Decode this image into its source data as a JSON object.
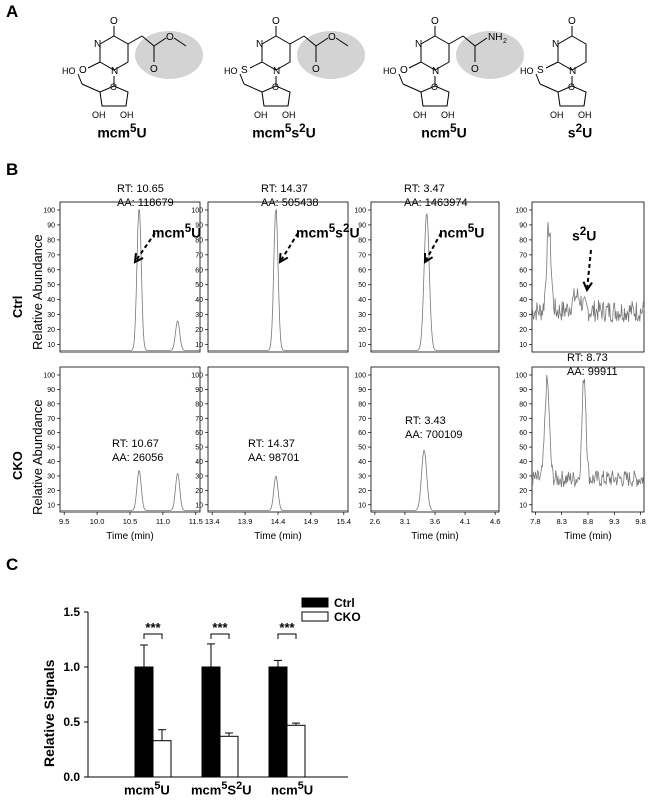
{
  "panels": {
    "a": "A",
    "b": "B",
    "c": "C"
  },
  "molecules": [
    {
      "label": "mcm5U",
      "base": "mcm",
      "sup": "5",
      "tail": "U",
      "s": "O",
      "sub": "ester"
    },
    {
      "label": "mcm5s2U",
      "base": "mcm",
      "sup": "5",
      "tail": "s",
      "sup2": "2",
      "tail2": "U",
      "s": "S",
      "sub": "ester"
    },
    {
      "label": "ncm5U",
      "base": "ncm",
      "sup": "5",
      "tail": "U",
      "s": "O",
      "sub": "amide"
    },
    {
      "label": "s2U",
      "base": "s",
      "sup": "2",
      "tail": "U",
      "s": "S",
      "sub": "none"
    }
  ],
  "atoms": {
    "O": "O",
    "N": "N",
    "S": "S",
    "HO": "HO",
    "OH": "OH",
    "NH2": "NH",
    "two": "2"
  },
  "row_labels": {
    "ctrl": "Ctrl",
    "cko": "CKO",
    "axis": "Relative Abundance"
  },
  "chromatograms": {
    "y_ticks": [
      "10",
      "20",
      "30",
      "40",
      "50",
      "60",
      "70",
      "80",
      "90",
      "100"
    ],
    "x_title": "Time (min)",
    "x_ticks": [
      [
        "9.5",
        "10.0",
        "10.5",
        "11.0",
        "11.5"
      ],
      [
        "13.4",
        "13.9",
        "14.4",
        "14.9",
        "15.4"
      ],
      [
        "2.6",
        "3.1",
        "3.6",
        "4.1",
        "4.6"
      ],
      [
        "7.8",
        "8.3",
        "8.8",
        "9.3",
        "9.8"
      ]
    ],
    "ctrl": [
      {
        "rt": "RT: 10.65",
        "aa": "AA: 118679",
        "peak_label": "mcm",
        "sup": "5",
        "tail": "U"
      },
      {
        "rt": "RT: 14.37",
        "aa": "AA: 505438",
        "peak_label": "mcm",
        "sup": "5",
        "tail": "s",
        "sup2": "2",
        "tail2": "U"
      },
      {
        "rt": "RT: 3.47",
        "aa": "AA: 1463974",
        "peak_label": "ncm",
        "sup": "5",
        "tail": "U"
      },
      {
        "rt": "",
        "aa": "",
        "peak_label": "s",
        "sup": "2",
        "tail": "U"
      }
    ],
    "cko": [
      {
        "rt": "RT: 10.67",
        "aa": "AA: 26056"
      },
      {
        "rt": "RT: 14.37",
        "aa": "AA: 98701"
      },
      {
        "rt": "RT: 3.43",
        "aa": "AA: 700109"
      },
      {
        "rt": "RT: 8.73",
        "aa": "AA: 99911"
      }
    ]
  },
  "chart_data": {
    "type": "bar",
    "categories": [
      "mcm5U",
      "mcm5S2U",
      "ncm5U"
    ],
    "category_labels": [
      {
        "base": "mcm",
        "sup": "5",
        "tail": "U"
      },
      {
        "base": "mcm",
        "sup": "5",
        "tail": "S",
        "sup2": "2",
        "tail2": "U"
      },
      {
        "base": "ncm",
        "sup": "5",
        "tail": "U"
      }
    ],
    "series": [
      {
        "name": "Ctrl",
        "values": [
          1.0,
          1.0,
          1.0
        ],
        "errors": [
          0.2,
          0.21,
          0.06
        ],
        "color": "#000000"
      },
      {
        "name": "CKO",
        "values": [
          0.33,
          0.37,
          0.47
        ],
        "errors": [
          0.1,
          0.03,
          0.02
        ],
        "color": "#ffffff"
      }
    ],
    "significance": [
      "***",
      "***",
      "***"
    ],
    "ylabel": "Relative Signals",
    "ylim": [
      0,
      1.5
    ],
    "y_ticks": [
      "0.0",
      "0.5",
      "1.0",
      "1.5"
    ],
    "legend_position": "top-right"
  }
}
